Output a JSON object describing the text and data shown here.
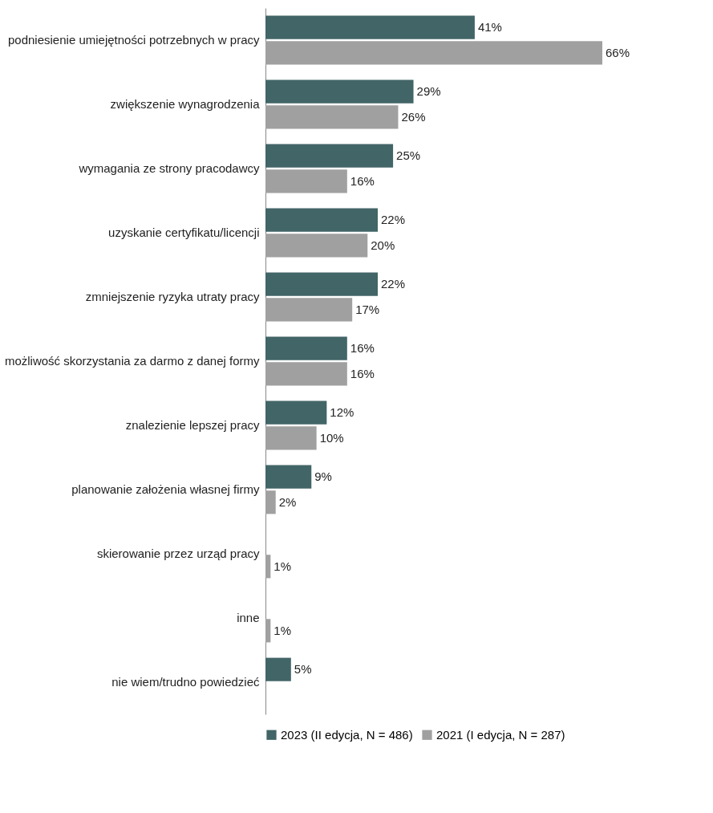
{
  "chart_data": {
    "type": "bar",
    "orientation": "horizontal",
    "categories": [
      "podniesienie umiejętności potrzebnych w pracy",
      "zwiększenie wynagrodzenia",
      "wymagania ze strony pracodawcy",
      "uzyskanie certyfikatu/licencji",
      "zmniejszenie ryzyka utraty pracy",
      "możliwość skorzystania za darmo z danej formy",
      "znalezienie lepszej pracy",
      "planowanie założenia własnej firmy",
      "skierowanie przez urząd pracy",
      "inne",
      "nie wiem/trudno powiedzieć"
    ],
    "series": [
      {
        "name": "2023 (II edycja, N = 486)",
        "color": "#426567",
        "values": [
          41,
          29,
          25,
          22,
          22,
          16,
          12,
          9,
          null,
          null,
          5
        ],
        "value_labels": [
          "41%",
          "29%",
          "25%",
          "22%",
          "22%",
          "16%",
          "12%",
          "9%",
          null,
          null,
          "5%"
        ]
      },
      {
        "name": "2021 (I edycja, N = 287)",
        "color": "#a0a0a0",
        "values": [
          66,
          26,
          16,
          20,
          17,
          16,
          10,
          2,
          1,
          1,
          null
        ],
        "value_labels": [
          "66%",
          "26%",
          "16%",
          "20%",
          "17%",
          "16%",
          "10%",
          "2%",
          "1%",
          "1%",
          null
        ]
      }
    ],
    "xlim": [
      0,
      66
    ],
    "legend": "bottom",
    "grid": false
  }
}
